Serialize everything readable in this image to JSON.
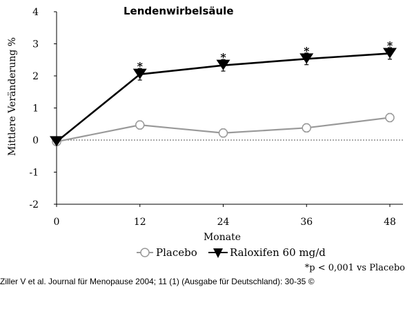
{
  "chart_data": {
    "type": "line",
    "title": "Lendenwirbelsäule",
    "xlabel": "Monate",
    "ylabel": "Mittlere Veränderung  %",
    "x": [
      0,
      12,
      24,
      36,
      48
    ],
    "xlim": [
      0,
      48
    ],
    "ylim": [
      -2,
      4
    ],
    "x_ticks": [
      0,
      12,
      24,
      36,
      48
    ],
    "y_ticks": [
      -2,
      -1,
      0,
      1,
      2,
      3,
      4
    ],
    "grid": false,
    "legend_position": "bottom",
    "series": [
      {
        "name": "Placebo",
        "values": [
          -0.05,
          0.47,
          0.22,
          0.38,
          0.7
        ],
        "error": [
          0,
          0.13,
          0.13,
          0.13,
          0.13
        ],
        "marker": "circle-open",
        "color": "#999999",
        "significance": [
          "",
          "",
          "",
          "",
          ""
        ]
      },
      {
        "name": "Raloxifen 60 mg/d",
        "values": [
          -0.05,
          2.05,
          2.33,
          2.53,
          2.7
        ],
        "error": [
          0,
          0.18,
          0.18,
          0.18,
          0.18
        ],
        "marker": "triangle-down-filled",
        "color": "#000000",
        "significance": [
          "",
          "*",
          "*",
          "*",
          "*"
        ]
      }
    ],
    "footnote": "*p < 0,001 vs Placebo"
  },
  "source": "Ziller V et al. Journal für Menopause 2004; 11 (1) (Ausgabe für Deutschland): 30-35 ©"
}
